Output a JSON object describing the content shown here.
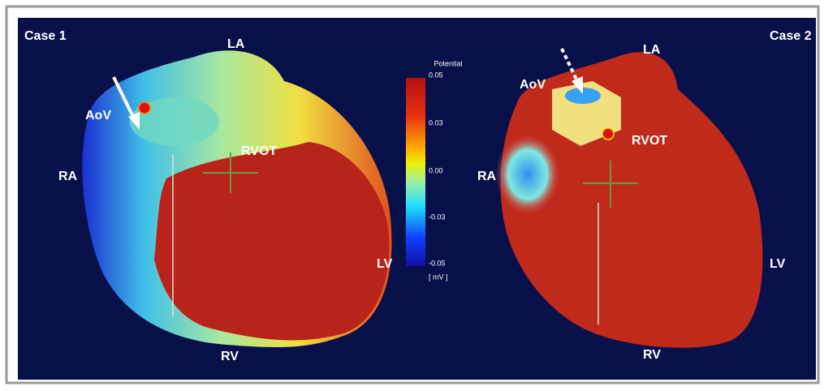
{
  "panels": [
    {
      "case_label": "Case 1",
      "labels": {
        "LA": "LA",
        "AoV": "AoV",
        "RA": "RA",
        "RVOT": "RVOT",
        "LV": "LV",
        "RV": "RV"
      }
    },
    {
      "case_label": "Case 2",
      "labels": {
        "LA": "LA",
        "AoV": "AoV",
        "RA": "RA",
        "RVOT": "RVOT",
        "LV": "LV",
        "RV": "RV"
      }
    }
  ],
  "colorbar": {
    "title": "Potential",
    "ticks": [
      "0.05",
      "0.03",
      "0.00",
      "-0.03",
      "-0.05"
    ],
    "unit": "[ mV ]"
  }
}
